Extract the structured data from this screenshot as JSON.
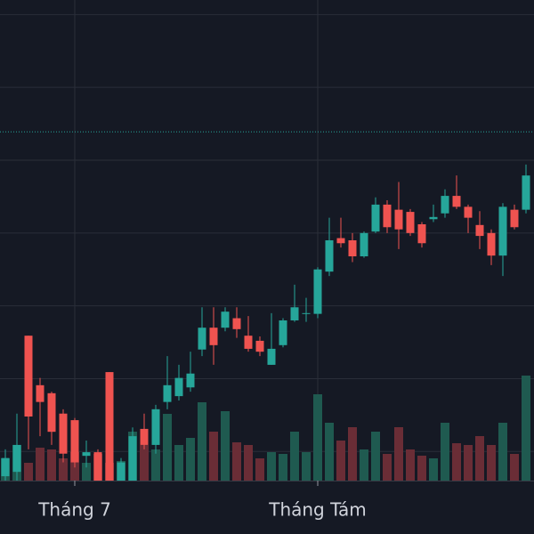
{
  "chart_data": {
    "type": "candlestick",
    "categories": [
      null,
      null,
      null,
      null,
      null,
      null,
      "Tháng 7",
      null,
      null,
      null,
      null,
      null,
      null,
      null,
      null,
      null,
      null,
      null,
      null,
      null,
      null,
      null,
      null,
      null,
      null,
      null,
      null,
      "Tháng Tám",
      null,
      null,
      null,
      null,
      null,
      null,
      null,
      null,
      null,
      null,
      null,
      null,
      null,
      null,
      null,
      null,
      null,
      null
    ],
    "open": [
      6.6,
      7.2,
      25.9,
      19.1,
      18.0,
      15.2,
      14.3,
      9.4,
      9.9,
      20.9,
      6.0,
      6.0,
      13.1,
      10.9,
      16.8,
      17.6,
      18.8,
      24.0,
      27.0,
      27.0,
      28.3,
      25.9,
      25.2,
      21.9,
      24.6,
      28.0,
      28.9,
      28.9,
      34.7,
      39.3,
      39.0,
      36.8,
      40.2,
      43.9,
      43.2,
      42.9,
      41.2,
      41.9,
      42.7,
      45.1,
      43.6,
      41.1,
      40.0,
      36.9,
      43.2,
      43.2
    ],
    "high": [
      10.3,
      15.2,
      25.9,
      20.1,
      18.2,
      15.8,
      14.6,
      11.5,
      10.3,
      20.9,
      9.1,
      13.3,
      15.2,
      16.4,
      23.1,
      21.9,
      23.7,
      29.8,
      29.8,
      29.8,
      29.8,
      28.6,
      25.8,
      29.0,
      28.3,
      32.9,
      31.1,
      35.3,
      42.1,
      42.1,
      40.0,
      40.2,
      44.9,
      44.5,
      47.0,
      43.3,
      41.5,
      43.9,
      46.0,
      47.9,
      43.9,
      43.0,
      40.5,
      44.1,
      43.9,
      49.4
    ],
    "low": [
      6.0,
      6.0,
      10.3,
      12.1,
      10.9,
      8.5,
      7.8,
      7.8,
      6.0,
      6.0,
      6.0,
      6.0,
      10.3,
      9.7,
      15.8,
      17.0,
      18.2,
      23.1,
      21.9,
      26.5,
      25.6,
      23.7,
      23.1,
      21.9,
      24.3,
      27.8,
      27.8,
      28.3,
      34.1,
      38.0,
      36.0,
      36.6,
      40.0,
      40.0,
      37.8,
      39.6,
      38.0,
      41.5,
      42.1,
      43.3,
      40.0,
      37.8,
      35.6,
      34.1,
      40.5,
      42.7
    ],
    "close": [
      9.1,
      10.9,
      14.8,
      16.8,
      12.7,
      9.7,
      8.5,
      9.9,
      6.0,
      6.0,
      8.5,
      12.1,
      10.9,
      15.8,
      19.1,
      20.1,
      20.7,
      27.0,
      24.6,
      29.2,
      26.8,
      24.1,
      23.7,
      24.1,
      28.0,
      29.8,
      29.0,
      35.0,
      39.0,
      38.6,
      36.8,
      40.0,
      43.9,
      40.8,
      40.5,
      40.0,
      38.6,
      42.2,
      45.1,
      43.6,
      42.1,
      39.6,
      36.9,
      43.6,
      40.8,
      47.9
    ],
    "volume": [
      12.5,
      20,
      10,
      18.5,
      17.5,
      12.5,
      16,
      10,
      15,
      10,
      11,
      27.5,
      20,
      17.5,
      37.5,
      20,
      24,
      44,
      27.5,
      39,
      21.5,
      20,
      12.5,
      16,
      15,
      27.5,
      16,
      48.5,
      32.5,
      22.5,
      30,
      17.5,
      27.5,
      15,
      30,
      17.5,
      14,
      12.5,
      32.5,
      21,
      20,
      25,
      20,
      32.5,
      15,
      59
    ],
    "up_color": "#26a69a",
    "down_color": "#ef5350",
    "volume_up_color": "#1f5a50",
    "volume_down_color": "#6a2d36",
    "ylim": [
      6,
      72
    ],
    "yticks": [
      10,
      20,
      30,
      40,
      50,
      60,
      70
    ],
    "grid": true,
    "volume_lim": [
      0,
      100
    ],
    "price_line": 53.9,
    "price_line_color": "#26a69a"
  }
}
